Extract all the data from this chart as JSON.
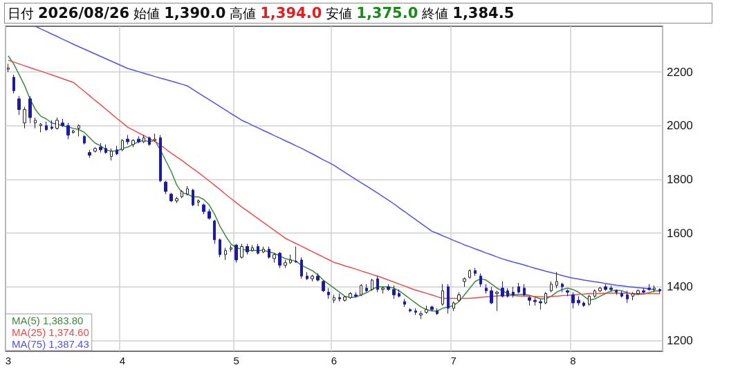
{
  "chart_data": {
    "type": "candlestick",
    "annotations": [
      "日付",
      "2026/08/26",
      "始値",
      "1,390.0",
      "高値",
      "1,394.0",
      "安値",
      "1,375.0",
      "終値",
      "1,384.5"
    ],
    "categories": [
      "3",
      null,
      null,
      null,
      null,
      null,
      null,
      null,
      null,
      null,
      null,
      null,
      null,
      null,
      null,
      null,
      null,
      null,
      null,
      null,
      null,
      "4",
      null,
      null,
      null,
      null,
      null,
      null,
      null,
      null,
      null,
      null,
      null,
      null,
      null,
      null,
      null,
      null,
      null,
      null,
      null,
      null,
      "5",
      null,
      null,
      null,
      null,
      null,
      null,
      null,
      null,
      null,
      null,
      null,
      null,
      null,
      null,
      null,
      null,
      null,
      "6",
      null,
      null,
      null,
      null,
      null,
      null,
      null,
      null,
      null,
      null,
      null,
      null,
      null,
      null,
      null,
      null,
      null,
      null,
      null,
      null,
      null,
      "7",
      null,
      null,
      null,
      null,
      null,
      null,
      null,
      null,
      null,
      null,
      null,
      null,
      null,
      null,
      null,
      null,
      null,
      null,
      null,
      null,
      null,
      "8",
      null,
      null,
      null,
      null,
      null,
      null,
      null,
      null,
      null,
      null,
      null,
      null,
      null,
      null,
      null,
      null
    ],
    "ylim": [
      1160,
      2370
    ],
    "yticks": [
      1200,
      1400,
      1600,
      1800,
      2000,
      2200
    ],
    "grid": true,
    "legend": "bottom left",
    "series": [
      {
        "type": "line",
        "name": "MA(5) 1,383.80",
        "color": "#3a8a3a",
        "values": [
          2260,
          2230,
          2190,
          2150,
          2100,
          2060,
          2035,
          2025,
          2010,
          2005,
          2000,
          1995,
          1990,
          1985,
          1975,
          1955,
          1935,
          1925,
          1910,
          1905,
          1905,
          1915,
          1920,
          1930,
          1940,
          1945,
          1940,
          1945,
          1910,
          1870,
          1830,
          1780,
          1750,
          1745,
          1735,
          1735,
          1725,
          1705,
          1670,
          1625,
          1590,
          1560,
          1545,
          1540,
          1535,
          1535,
          1535,
          1535,
          1530,
          1525,
          1515,
          1505,
          1500,
          1495,
          1480,
          1470,
          1460,
          1445,
          1425,
          1410,
          1395,
          1380,
          1365,
          1360,
          1362,
          1370,
          1378,
          1390,
          1400,
          1400,
          1400,
          1395,
          1385,
          1370,
          1355,
          1340,
          1325,
          1315,
          1310,
          1310,
          1320,
          1325,
          1330,
          1345,
          1370,
          1395,
          1420,
          1430,
          1425,
          1410,
          1395,
          1385,
          1375,
          1370,
          1372,
          1372,
          1368,
          1362,
          1355,
          1355,
          1365,
          1380,
          1390,
          1395,
          1390,
          1380,
          1365,
          1350,
          1355,
          1365,
          1375,
          1385,
          1388,
          1385,
          1378,
          1372,
          1372,
          1373,
          1378,
          1385,
          1383.8
        ]
      },
      {
        "type": "line",
        "name": "MA(25) 1,374.60",
        "color": "#f04a4a",
        "values": [
          2244,
          2237,
          2230,
          2223,
          2216,
          2209,
          2203,
          2196,
          2189,
          2182,
          2175,
          2168,
          2161,
          2144,
          2128,
          2111,
          2094,
          2078,
          2061,
          2044,
          2027,
          2011,
          1994,
          1984,
          1973,
          1963,
          1952,
          1942,
          1928,
          1913,
          1898,
          1884,
          1870,
          1855,
          1840,
          1826,
          1810,
          1794,
          1778,
          1762,
          1745,
          1729,
          1713,
          1697,
          1683,
          1668,
          1654,
          1639,
          1625,
          1610,
          1596,
          1581,
          1571,
          1561,
          1551,
          1541,
          1531,
          1521,
          1511,
          1501,
          1491,
          1485,
          1478,
          1472,
          1466,
          1459,
          1453,
          1446,
          1440,
          1433,
          1425,
          1418,
          1410,
          1403,
          1395,
          1388,
          1382,
          1376,
          1370,
          1363,
          1357,
          1357,
          1357,
          1357,
          1357,
          1357,
          1359,
          1361,
          1363,
          1364,
          1366,
          1368,
          1367,
          1367,
          1366,
          1365,
          1365,
          1364,
          1363,
          1362,
          1364,
          1365,
          1367,
          1368,
          1370,
          1372,
          1373,
          1375,
          1375,
          1375,
          1376,
          1376,
          1376,
          1376,
          1376,
          1375,
          1375,
          1375,
          1375,
          1375,
          1374.6
        ]
      },
      {
        "type": "line",
        "name": "MA(75) 1,387.43",
        "color": "#5050f0",
        "values": [
          null,
          null,
          null,
          null,
          null,
          2370,
          2360,
          2351,
          2341,
          2332,
          2322,
          2313,
          2303,
          2294,
          2285,
          2276,
          2267,
          2258,
          2249,
          2240,
          2231,
          2222,
          2213,
          2207,
          2201,
          2195,
          2189,
          2183,
          2177,
          2172,
          2166,
          2160,
          2154,
          2148,
          2135,
          2122,
          2109,
          2097,
          2084,
          2071,
          2058,
          2045,
          2033,
          2020,
          2011,
          2001,
          1992,
          1982,
          1973,
          1963,
          1954,
          1944,
          1935,
          1925,
          1916,
          1905,
          1895,
          1884,
          1873,
          1863,
          1852,
          1839,
          1826,
          1813,
          1800,
          1787,
          1775,
          1762,
          1749,
          1736,
          1723,
          1709,
          1694,
          1680,
          1665,
          1651,
          1636,
          1622,
          1607,
          1599,
          1590,
          1582,
          1573,
          1565,
          1556,
          1549,
          1541,
          1534,
          1526,
          1519,
          1511,
          1504,
          1498,
          1492,
          1487,
          1481,
          1475,
          1469,
          1464,
          1458,
          1453,
          1448,
          1442,
          1437,
          1432,
          1429,
          1425,
          1422,
          1419,
          1416,
          1412,
          1409,
          1406,
          1404,
          1401,
          1399,
          1397,
          1395,
          1392,
          1390,
          null
        ]
      },
      {
        "type": "candlestick",
        "colors": [
          "#ffffff",
          "#1c1ca0",
          "#1c1ca0",
          "#ffffff",
          "#1c1ca0",
          "#ffffff",
          "#ffffff",
          "#1c1ca0",
          "#1c1ca0",
          "#ffffff",
          "#1c1ca0",
          "#1c1ca0",
          "#ffffff",
          "#ffffff",
          "#1c1ca0",
          "#1c1ca0",
          "#ffffff",
          "#1c1ca0",
          "#1c1ca0",
          "#ffffff",
          "#1c1ca0",
          "#ffffff",
          "#1c1ca0",
          "#ffffff",
          "#1c1ca0",
          "#ffffff",
          "#1c1ca0",
          "#ffffff",
          "#1c1ca0",
          "#1c1ca0",
          "#1c1ca0",
          "#ffffff",
          "#ffffff",
          "#ffffff",
          "#1c1ca0",
          "#ffffff",
          "#1c1ca0",
          "#1c1ca0",
          "#1c1ca0",
          "#1c1ca0",
          "#ffffff",
          "#ffffff",
          "#1c1ca0",
          "#ffffff",
          "#1c1ca0",
          "#ffffff",
          "#1c1ca0",
          "#ffffff",
          "#1c1ca0",
          "#ffffff",
          "#1c1ca0",
          "#ffffff",
          "#ffffff",
          "#1c1ca0",
          "#1c1ca0",
          "#1c1ca0",
          "#ffffff",
          "#1c1ca0",
          "#1c1ca0",
          "#1c1ca0",
          "#ffffff",
          "#1c1ca0",
          "#ffffff",
          "#ffffff",
          "#1c1ca0",
          "#ffffff",
          "#1c1ca0",
          "#ffffff",
          "#1c1ca0",
          "#ffffff",
          "#1c1ca0",
          "#1c1ca0",
          "#1c1ca0",
          "#1c1ca0",
          "#1c1ca0",
          "#1c1ca0",
          "#ffffff",
          "#ffffff",
          "#1c1ca0",
          "#1c1ca0",
          "#ffffff",
          "#1c1ca0",
          "#ffffff",
          "#ffffff",
          "#ffffff",
          "#ffffff",
          "#1c1ca0",
          "#1c1ca0",
          "#1c1ca0",
          "#1c1ca0",
          "#ffffff",
          "#1c1ca0",
          "#1c1ca0",
          "#1c1ca0",
          "#1c1ca0",
          "#1c1ca0",
          "#1c1ca0",
          "#1c1ca0",
          "#1c1ca0",
          "#ffffff",
          "#ffffff",
          "#ffffff",
          "#1c1ca0",
          "#1c1ca0",
          "#1c1ca0",
          "#1c1ca0",
          "#1c1ca0",
          "#ffffff",
          "#ffffff",
          "#ffffff",
          "#1c1ca0",
          "#1c1ca0",
          "#1c1ca0",
          "#1c1ca0",
          "#1c1ca0",
          "#ffffff",
          "#ffffff",
          "#1c1ca0",
          "#1c1ca0",
          "#ffffff",
          "#1c1ca0"
        ],
        "ohlc": [
          [
            2210,
            2230,
            2200,
            2215
          ],
          [
            2180,
            2190,
            2120,
            2130
          ],
          [
            2100,
            2110,
            2040,
            2060
          ],
          [
            2010,
            2070,
            1990,
            2060
          ],
          [
            2100,
            2110,
            2010,
            2030
          ],
          [
            2010,
            2030,
            1990,
            2020
          ],
          [
            2000,
            2010,
            1975,
            2005
          ],
          [
            2000,
            2015,
            1980,
            1985
          ],
          [
            1995,
            2020,
            1985,
            1990
          ],
          [
            1990,
            2030,
            1985,
            2020
          ],
          [
            2010,
            2025,
            1995,
            2000
          ],
          [
            2000,
            2010,
            1950,
            1965
          ],
          [
            1975,
            1985,
            1970,
            1980
          ],
          [
            1990,
            2005,
            1960,
            2000
          ],
          [
            1960,
            1965,
            1930,
            1935
          ],
          [
            1900,
            1910,
            1880,
            1890
          ],
          [
            1905,
            1920,
            1900,
            1915
          ],
          [
            1920,
            1935,
            1900,
            1910
          ],
          [
            1915,
            1930,
            1895,
            1900
          ],
          [
            1885,
            1915,
            1870,
            1905
          ],
          [
            1910,
            1925,
            1890,
            1895
          ],
          [
            1910,
            1950,
            1905,
            1945
          ],
          [
            1950,
            1965,
            1930,
            1940
          ],
          [
            1930,
            1950,
            1920,
            1945
          ],
          [
            1950,
            1960,
            1935,
            1940
          ],
          [
            1940,
            1965,
            1935,
            1955
          ],
          [
            1955,
            1960,
            1925,
            1930
          ],
          [
            1945,
            1970,
            1940,
            1950
          ],
          [
            1955,
            1965,
            1790,
            1795
          ],
          [
            1790,
            1795,
            1745,
            1755
          ],
          [
            1745,
            1750,
            1715,
            1720
          ],
          [
            1720,
            1735,
            1712,
            1728
          ],
          [
            1735,
            1760,
            1730,
            1755
          ],
          [
            1745,
            1775,
            1740,
            1765
          ],
          [
            1760,
            1765,
            1700,
            1705
          ],
          [
            1715,
            1725,
            1700,
            1720
          ],
          [
            1705,
            1710,
            1670,
            1680
          ],
          [
            1680,
            1690,
            1650,
            1655
          ],
          [
            1645,
            1650,
            1560,
            1575
          ],
          [
            1575,
            1580,
            1510,
            1520
          ],
          [
            1520,
            1545,
            1500,
            1535
          ],
          [
            1540,
            1555,
            1530,
            1545
          ],
          [
            1555,
            1560,
            1490,
            1500
          ],
          [
            1510,
            1560,
            1505,
            1550
          ],
          [
            1550,
            1560,
            1520,
            1530
          ],
          [
            1535,
            1555,
            1530,
            1545
          ],
          [
            1550,
            1560,
            1520,
            1525
          ],
          [
            1530,
            1550,
            1525,
            1540
          ],
          [
            1540,
            1550,
            1505,
            1510
          ],
          [
            1505,
            1525,
            1490,
            1520
          ],
          [
            1525,
            1530,
            1470,
            1480
          ],
          [
            1480,
            1500,
            1470,
            1490
          ],
          [
            1490,
            1520,
            1485,
            1500
          ],
          [
            1495,
            1550,
            1490,
            1492
          ],
          [
            1500,
            1510,
            1430,
            1440
          ],
          [
            1440,
            1455,
            1425,
            1430
          ],
          [
            1430,
            1445,
            1420,
            1440
          ],
          [
            1440,
            1450,
            1420,
            1425
          ],
          [
            1420,
            1425,
            1380,
            1385
          ],
          [
            1380,
            1395,
            1355,
            1370
          ],
          [
            1350,
            1370,
            1340,
            1360
          ],
          [
            1360,
            1375,
            1345,
            1355
          ],
          [
            1350,
            1365,
            1345,
            1362
          ],
          [
            1360,
            1380,
            1355,
            1375
          ],
          [
            1370,
            1380,
            1360,
            1365
          ],
          [
            1370,
            1410,
            1365,
            1405
          ],
          [
            1395,
            1410,
            1380,
            1385
          ],
          [
            1390,
            1430,
            1385,
            1425
          ],
          [
            1430,
            1440,
            1380,
            1390
          ],
          [
            1390,
            1400,
            1375,
            1395
          ],
          [
            1400,
            1410,
            1385,
            1390
          ],
          [
            1390,
            1405,
            1355,
            1370
          ],
          [
            1375,
            1390,
            1360,
            1365
          ],
          [
            1345,
            1355,
            1325,
            1335
          ],
          [
            1315,
            1320,
            1305,
            1310
          ],
          [
            1310,
            1320,
            1295,
            1305
          ],
          [
            1295,
            1310,
            1280,
            1300
          ],
          [
            1305,
            1330,
            1300,
            1315
          ],
          [
            1325,
            1330,
            1310,
            1315
          ],
          [
            1310,
            1320,
            1295,
            1300
          ],
          [
            1335,
            1410,
            1330,
            1385
          ],
          [
            1400,
            1410,
            1300,
            1320
          ],
          [
            1320,
            1345,
            1310,
            1340
          ],
          [
            1350,
            1380,
            1345,
            1370
          ],
          [
            1420,
            1435,
            1400,
            1430
          ],
          [
            1435,
            1465,
            1430,
            1460
          ],
          [
            1460,
            1470,
            1440,
            1450
          ],
          [
            1440,
            1450,
            1400,
            1410
          ],
          [
            1395,
            1410,
            1375,
            1385
          ],
          [
            1385,
            1400,
            1335,
            1340
          ],
          [
            1375,
            1385,
            1310,
            1380
          ],
          [
            1395,
            1420,
            1360,
            1365
          ],
          [
            1385,
            1395,
            1360,
            1365
          ],
          [
            1380,
            1400,
            1360,
            1370
          ],
          [
            1400,
            1415,
            1375,
            1380
          ],
          [
            1395,
            1410,
            1365,
            1370
          ],
          [
            1360,
            1365,
            1330,
            1350
          ],
          [
            1350,
            1360,
            1330,
            1345
          ],
          [
            1345,
            1355,
            1315,
            1340
          ],
          [
            1340,
            1380,
            1335,
            1375
          ],
          [
            1385,
            1420,
            1380,
            1410
          ],
          [
            1405,
            1455,
            1395,
            1420
          ],
          [
            1410,
            1415,
            1380,
            1400
          ],
          [
            1385,
            1390,
            1365,
            1380
          ],
          [
            1370,
            1380,
            1320,
            1340
          ],
          [
            1350,
            1365,
            1330,
            1340
          ],
          [
            1340,
            1345,
            1325,
            1330
          ],
          [
            1335,
            1370,
            1330,
            1365
          ],
          [
            1365,
            1390,
            1360,
            1385
          ],
          [
            1385,
            1400,
            1380,
            1395
          ],
          [
            1400,
            1410,
            1385,
            1390
          ],
          [
            1395,
            1405,
            1380,
            1390
          ],
          [
            1385,
            1390,
            1370,
            1380
          ],
          [
            1375,
            1385,
            1360,
            1365
          ],
          [
            1370,
            1385,
            1340,
            1355
          ],
          [
            1365,
            1380,
            1350,
            1375
          ],
          [
            1375,
            1390,
            1370,
            1385
          ],
          [
            1385,
            1395,
            1375,
            1380
          ],
          [
            1395,
            1410,
            1385,
            1390
          ],
          [
            1390,
            1405,
            1380,
            1395
          ],
          [
            1390,
            1394,
            1375,
            1384.5
          ]
        ]
      }
    ]
  }
}
